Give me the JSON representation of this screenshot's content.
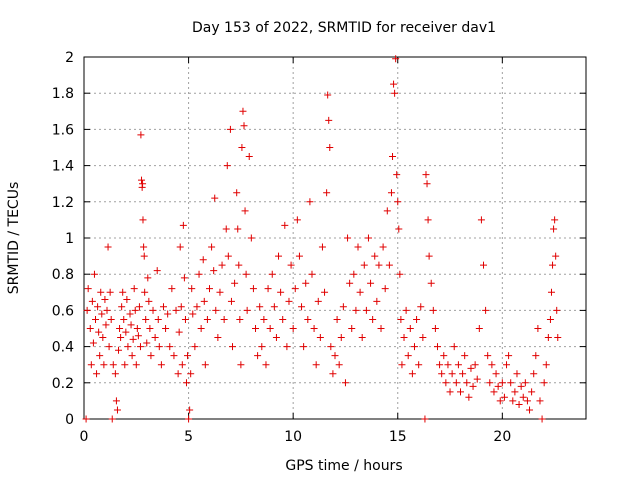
{
  "chart_data": {
    "type": "scatter",
    "title": "Day 153 of 2022, SRMTID for receiver dav1",
    "xlabel": "GPS time / hours",
    "ylabel": "SRMTID / TECUs",
    "xlim": [
      0,
      24
    ],
    "ylim": [
      0,
      2
    ],
    "xticks": [
      0,
      5,
      10,
      15,
      20
    ],
    "xtick_labels": [
      "0",
      "5",
      "10",
      "15",
      "20"
    ],
    "yticks": [
      0,
      0.2,
      0.4,
      0.6,
      0.8,
      1,
      1.2,
      1.4,
      1.6,
      1.8,
      2
    ],
    "ytick_labels": [
      "0",
      "0.2",
      "0.4",
      "0.6",
      "0.8",
      "1",
      "1.2",
      "1.4",
      "1.6",
      "1.8",
      "2"
    ],
    "grid": true,
    "marker": "plus",
    "color": "#e00000",
    "series": [
      {
        "name": "SRMTID",
        "points": [
          [
            0.1,
            0.0
          ],
          [
            0.15,
            0.6
          ],
          [
            0.2,
            0.72
          ],
          [
            0.3,
            0.5
          ],
          [
            0.35,
            0.3
          ],
          [
            0.4,
            0.65
          ],
          [
            0.45,
            0.42
          ],
          [
            0.5,
            0.8
          ],
          [
            0.55,
            0.55
          ],
          [
            0.6,
            0.25
          ],
          [
            0.65,
            0.62
          ],
          [
            0.7,
            0.48
          ],
          [
            0.75,
            0.35
          ],
          [
            0.8,
            0.7
          ],
          [
            0.85,
            0.58
          ],
          [
            0.9,
            0.45
          ],
          [
            0.95,
            0.3
          ],
          [
            1.0,
            0.66
          ],
          [
            1.05,
            0.52
          ],
          [
            1.1,
            0.6
          ],
          [
            1.15,
            0.95
          ],
          [
            1.2,
            0.4
          ],
          [
            1.25,
            0.7
          ],
          [
            1.3,
            0.55
          ],
          [
            1.35,
            0.0
          ],
          [
            1.4,
            0.3
          ],
          [
            1.5,
            0.25
          ],
          [
            1.55,
            0.1
          ],
          [
            1.6,
            0.05
          ],
          [
            1.65,
            0.38
          ],
          [
            1.7,
            0.5
          ],
          [
            1.75,
            0.45
          ],
          [
            1.8,
            0.62
          ],
          [
            1.85,
            0.7
          ],
          [
            1.9,
            0.55
          ],
          [
            1.95,
            0.3
          ],
          [
            2.0,
            0.48
          ],
          [
            2.05,
            0.66
          ],
          [
            2.1,
            0.4
          ],
          [
            2.2,
            0.58
          ],
          [
            2.25,
            0.52
          ],
          [
            2.3,
            0.35
          ],
          [
            2.35,
            0.44
          ],
          [
            2.4,
            0.72
          ],
          [
            2.45,
            0.6
          ],
          [
            2.5,
            0.3
          ],
          [
            2.55,
            0.5
          ],
          [
            2.6,
            0.46
          ],
          [
            2.65,
            0.62
          ],
          [
            2.7,
            0.4
          ],
          [
            2.72,
            1.57
          ],
          [
            2.75,
            1.32
          ],
          [
            2.78,
            1.28
          ],
          [
            2.8,
            1.3
          ],
          [
            2.82,
            1.1
          ],
          [
            2.85,
            0.95
          ],
          [
            2.88,
            0.9
          ],
          [
            2.9,
            0.7
          ],
          [
            2.95,
            0.55
          ],
          [
            3.0,
            0.42
          ],
          [
            3.05,
            0.78
          ],
          [
            3.1,
            0.65
          ],
          [
            3.15,
            0.5
          ],
          [
            3.2,
            0.35
          ],
          [
            3.3,
            0.6
          ],
          [
            3.4,
            0.45
          ],
          [
            3.5,
            0.82
          ],
          [
            3.55,
            0.55
          ],
          [
            3.6,
            0.4
          ],
          [
            3.7,
            0.3
          ],
          [
            3.8,
            0.62
          ],
          [
            3.9,
            0.5
          ],
          [
            4.0,
            0.58
          ],
          [
            4.1,
            0.4
          ],
          [
            4.2,
            0.72
          ],
          [
            4.3,
            0.35
          ],
          [
            4.4,
            0.6
          ],
          [
            4.5,
            0.25
          ],
          [
            4.55,
            0.48
          ],
          [
            4.6,
            0.95
          ],
          [
            4.65,
            0.62
          ],
          [
            4.7,
            0.3
          ],
          [
            4.75,
            1.07
          ],
          [
            4.8,
            0.78
          ],
          [
            4.85,
            0.55
          ],
          [
            4.9,
            0.2
          ],
          [
            4.95,
            0.35
          ],
          [
            5.0,
            0.0
          ],
          [
            5.05,
            0.05
          ],
          [
            5.1,
            0.25
          ],
          [
            5.15,
            0.72
          ],
          [
            5.2,
            0.58
          ],
          [
            5.3,
            0.4
          ],
          [
            5.4,
            0.62
          ],
          [
            5.5,
            0.8
          ],
          [
            5.6,
            0.5
          ],
          [
            5.7,
            0.88
          ],
          [
            5.75,
            0.65
          ],
          [
            5.8,
            0.3
          ],
          [
            5.9,
            0.55
          ],
          [
            6.0,
            0.72
          ],
          [
            6.1,
            0.95
          ],
          [
            6.2,
            0.82
          ],
          [
            6.25,
            1.22
          ],
          [
            6.3,
            0.6
          ],
          [
            6.4,
            0.45
          ],
          [
            6.5,
            0.7
          ],
          [
            6.6,
            0.85
          ],
          [
            6.7,
            0.55
          ],
          [
            6.8,
            1.05
          ],
          [
            6.85,
            1.4
          ],
          [
            6.9,
            0.9
          ],
          [
            7.0,
            1.6
          ],
          [
            7.05,
            0.65
          ],
          [
            7.1,
            0.4
          ],
          [
            7.2,
            0.75
          ],
          [
            7.3,
            1.25
          ],
          [
            7.35,
            1.05
          ],
          [
            7.4,
            0.85
          ],
          [
            7.45,
            0.55
          ],
          [
            7.5,
            0.3
          ],
          [
            7.55,
            1.5
          ],
          [
            7.6,
            1.7
          ],
          [
            7.65,
            1.62
          ],
          [
            7.7,
            1.15
          ],
          [
            7.75,
            0.8
          ],
          [
            7.8,
            0.6
          ],
          [
            7.9,
            1.45
          ],
          [
            8.0,
            1.0
          ],
          [
            8.1,
            0.72
          ],
          [
            8.2,
            0.5
          ],
          [
            8.3,
            0.35
          ],
          [
            8.4,
            0.62
          ],
          [
            8.5,
            0.4
          ],
          [
            8.6,
            0.55
          ],
          [
            8.7,
            0.3
          ],
          [
            8.8,
            0.72
          ],
          [
            8.9,
            0.5
          ],
          [
            9.0,
            0.8
          ],
          [
            9.1,
            0.62
          ],
          [
            9.2,
            0.45
          ],
          [
            9.3,
            0.9
          ],
          [
            9.4,
            0.7
          ],
          [
            9.5,
            0.55
          ],
          [
            9.6,
            1.07
          ],
          [
            9.7,
            0.4
          ],
          [
            9.8,
            0.65
          ],
          [
            9.9,
            0.85
          ],
          [
            10.0,
            0.5
          ],
          [
            10.1,
            0.72
          ],
          [
            10.2,
            1.1
          ],
          [
            10.3,
            0.9
          ],
          [
            10.4,
            0.62
          ],
          [
            10.5,
            0.4
          ],
          [
            10.6,
            0.75
          ],
          [
            10.7,
            0.55
          ],
          [
            10.8,
            1.2
          ],
          [
            10.9,
            0.8
          ],
          [
            11.0,
            0.5
          ],
          [
            11.1,
            0.3
          ],
          [
            11.2,
            0.65
          ],
          [
            11.3,
            0.45
          ],
          [
            11.4,
            0.95
          ],
          [
            11.5,
            0.7
          ],
          [
            11.6,
            1.25
          ],
          [
            11.65,
            1.79
          ],
          [
            11.7,
            1.65
          ],
          [
            11.75,
            1.5
          ],
          [
            11.8,
            0.4
          ],
          [
            11.9,
            0.25
          ],
          [
            12.0,
            0.35
          ],
          [
            12.1,
            0.55
          ],
          [
            12.2,
            0.3
          ],
          [
            12.3,
            0.45
          ],
          [
            12.4,
            0.62
          ],
          [
            12.5,
            0.2
          ],
          [
            12.6,
            1.0
          ],
          [
            12.7,
            0.75
          ],
          [
            12.8,
            0.5
          ],
          [
            12.9,
            0.8
          ],
          [
            13.0,
            0.6
          ],
          [
            13.1,
            0.95
          ],
          [
            13.2,
            0.7
          ],
          [
            13.3,
            0.45
          ],
          [
            13.4,
            0.85
          ],
          [
            13.5,
            0.6
          ],
          [
            13.6,
            1.0
          ],
          [
            13.7,
            0.75
          ],
          [
            13.8,
            0.55
          ],
          [
            13.9,
            0.9
          ],
          [
            14.0,
            0.65
          ],
          [
            14.1,
            0.85
          ],
          [
            14.2,
            0.5
          ],
          [
            14.3,
            0.95
          ],
          [
            14.4,
            0.72
          ],
          [
            14.5,
            1.15
          ],
          [
            14.6,
            0.85
          ],
          [
            14.7,
            1.25
          ],
          [
            14.75,
            1.45
          ],
          [
            14.8,
            1.85
          ],
          [
            14.85,
            1.8
          ],
          [
            14.9,
            1.99
          ],
          [
            14.95,
            1.35
          ],
          [
            15.0,
            1.2
          ],
          [
            15.05,
            1.05
          ],
          [
            15.1,
            0.8
          ],
          [
            15.15,
            0.55
          ],
          [
            15.2,
            0.3
          ],
          [
            15.3,
            0.45
          ],
          [
            15.4,
            0.6
          ],
          [
            15.5,
            0.35
          ],
          [
            15.6,
            0.5
          ],
          [
            15.7,
            0.25
          ],
          [
            15.8,
            0.4
          ],
          [
            15.9,
            0.55
          ],
          [
            16.0,
            0.3
          ],
          [
            16.1,
            0.62
          ],
          [
            16.2,
            0.45
          ],
          [
            16.3,
            0.0
          ],
          [
            16.35,
            1.35
          ],
          [
            16.4,
            1.3
          ],
          [
            16.45,
            1.1
          ],
          [
            16.5,
            0.9
          ],
          [
            16.6,
            0.75
          ],
          [
            16.7,
            0.6
          ],
          [
            16.8,
            0.5
          ],
          [
            16.9,
            0.4
          ],
          [
            17.0,
            0.3
          ],
          [
            17.1,
            0.25
          ],
          [
            17.2,
            0.35
          ],
          [
            17.3,
            0.2
          ],
          [
            17.4,
            0.3
          ],
          [
            17.5,
            0.15
          ],
          [
            17.6,
            0.25
          ],
          [
            17.7,
            0.4
          ],
          [
            17.8,
            0.2
          ],
          [
            17.9,
            0.3
          ],
          [
            18.0,
            0.15
          ],
          [
            18.1,
            0.25
          ],
          [
            18.2,
            0.35
          ],
          [
            18.3,
            0.2
          ],
          [
            18.4,
            0.12
          ],
          [
            18.5,
            0.28
          ],
          [
            18.6,
            0.18
          ],
          [
            18.7,
            0.3
          ],
          [
            18.8,
            0.22
          ],
          [
            18.9,
            0.5
          ],
          [
            19.0,
            1.1
          ],
          [
            19.1,
            0.85
          ],
          [
            19.2,
            0.6
          ],
          [
            19.3,
            0.35
          ],
          [
            19.4,
            0.2
          ],
          [
            19.5,
            0.3
          ],
          [
            19.6,
            0.15
          ],
          [
            19.7,
            0.25
          ],
          [
            19.8,
            0.18
          ],
          [
            19.9,
            0.1
          ],
          [
            20.0,
            0.2
          ],
          [
            20.1,
            0.12
          ],
          [
            20.2,
            0.3
          ],
          [
            20.3,
            0.35
          ],
          [
            20.4,
            0.2
          ],
          [
            20.5,
            0.1
          ],
          [
            20.6,
            0.15
          ],
          [
            20.7,
            0.25
          ],
          [
            20.8,
            0.08
          ],
          [
            20.9,
            0.18
          ],
          [
            21.0,
            0.12
          ],
          [
            21.1,
            0.2
          ],
          [
            21.2,
            0.1
          ],
          [
            21.3,
            0.05
          ],
          [
            21.4,
            0.15
          ],
          [
            21.5,
            0.25
          ],
          [
            21.6,
            0.35
          ],
          [
            21.7,
            0.5
          ],
          [
            21.8,
            0.1
          ],
          [
            21.9,
            0.0
          ],
          [
            22.0,
            0.2
          ],
          [
            22.1,
            0.3
          ],
          [
            22.2,
            0.45
          ],
          [
            22.3,
            0.55
          ],
          [
            22.35,
            0.7
          ],
          [
            22.4,
            0.85
          ],
          [
            22.45,
            1.05
          ],
          [
            22.5,
            1.1
          ],
          [
            22.55,
            0.9
          ],
          [
            22.6,
            0.6
          ],
          [
            22.65,
            0.45
          ]
        ]
      }
    ]
  }
}
